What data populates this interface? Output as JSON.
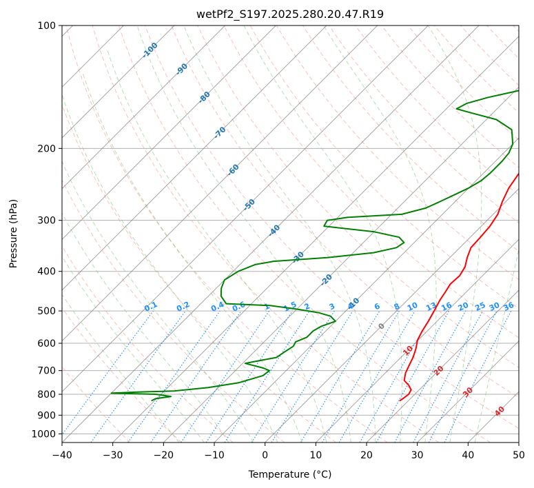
{
  "chart_data": {
    "type": "line",
    "title": "wetPf2_S197.2025.280.20.47.R19",
    "xlabel": "Temperature (°C)",
    "ylabel": "Pressure (hPa)",
    "xlim": [
      -40,
      50
    ],
    "ylim": [
      1050,
      100
    ],
    "y_scale": "log",
    "x_ticks": [
      "−40",
      "−30",
      "−20",
      "−10",
      "0",
      "10",
      "20",
      "30",
      "40",
      "50"
    ],
    "y_ticks": [
      1000,
      900,
      800,
      700,
      600,
      500,
      400,
      300,
      200,
      100
    ],
    "grid": true,
    "series": [
      {
        "id": "temperature",
        "color": "#ff0000",
        "points": [
          [
            18.3,
            830
          ],
          [
            18.5,
            820
          ],
          [
            18.8,
            800
          ],
          [
            18.4,
            780
          ],
          [
            17.0,
            760
          ],
          [
            15.2,
            740
          ],
          [
            14.0,
            710
          ],
          [
            13.2,
            680
          ],
          [
            12.4,
            650
          ],
          [
            11.3,
            620
          ],
          [
            9.9,
            590
          ],
          [
            9.0,
            560
          ],
          [
            8.3,
            530
          ],
          [
            7.4,
            500
          ],
          [
            6.4,
            470
          ],
          [
            5.9,
            450
          ],
          [
            5.3,
            430
          ],
          [
            5.5,
            410
          ],
          [
            4.8,
            390
          ],
          [
            3.4,
            370
          ],
          [
            2.2,
            350
          ],
          [
            2.0,
            330
          ],
          [
            1.7,
            310
          ],
          [
            0.9,
            290
          ],
          [
            -0.7,
            270
          ],
          [
            -2.1,
            250
          ],
          [
            -3.0,
            230
          ],
          [
            -2.4,
            210
          ],
          [
            -0.5,
            190
          ],
          [
            2.6,
            170
          ],
          [
            6.6,
            150
          ],
          [
            11.0,
            130
          ],
          [
            13.7,
            118
          ],
          [
            14.6,
            110
          ],
          [
            16.8,
            104
          ],
          [
            21.5,
            100
          ]
        ]
      },
      {
        "id": "dewpoint",
        "color": "#008000",
        "points": [
          [
            -30.6,
            830
          ],
          [
            -30.2,
            820
          ],
          [
            -27.6,
            810
          ],
          [
            -31.0,
            800
          ],
          [
            -40.0,
            795
          ],
          [
            -35.0,
            790
          ],
          [
            -28.0,
            785
          ],
          [
            -22.0,
            770
          ],
          [
            -17.0,
            750
          ],
          [
            -13.6,
            720
          ],
          [
            -13.3,
            700
          ],
          [
            -15.0,
            690
          ],
          [
            -17.5,
            680
          ],
          [
            -19.5,
            672
          ],
          [
            -18.0,
            665
          ],
          [
            -14.5,
            650
          ],
          [
            -14.0,
            630
          ],
          [
            -13.4,
            610
          ],
          [
            -13.8,
            595
          ],
          [
            -12.5,
            580
          ],
          [
            -12.5,
            560
          ],
          [
            -11.8,
            545
          ],
          [
            -10.0,
            530
          ],
          [
            -12.0,
            515
          ],
          [
            -15.0,
            505
          ],
          [
            -20.0,
            495
          ],
          [
            -26.0,
            485
          ],
          [
            -35.0,
            480
          ],
          [
            -37.5,
            460
          ],
          [
            -39.0,
            440
          ],
          [
            -40.0,
            420
          ],
          [
            -39.0,
            400
          ],
          [
            -37.0,
            385
          ],
          [
            -34.0,
            378
          ],
          [
            -24.0,
            370
          ],
          [
            -16.0,
            360
          ],
          [
            -12.5,
            350
          ],
          [
            -12.0,
            340
          ],
          [
            -14.0,
            330
          ],
          [
            -20.0,
            320
          ],
          [
            -31.0,
            310
          ],
          [
            -31.5,
            300
          ],
          [
            -28.0,
            295
          ],
          [
            -18.0,
            290
          ],
          [
            -14.5,
            280
          ],
          [
            -13.0,
            270
          ],
          [
            -11.5,
            260
          ],
          [
            -10.0,
            250
          ],
          [
            -9.0,
            240
          ],
          [
            -8.7,
            230
          ],
          [
            -8.7,
            215
          ],
          [
            -9.0,
            205
          ],
          [
            -10.0,
            195
          ],
          [
            -13.0,
            180
          ],
          [
            -18.0,
            170
          ],
          [
            -25.0,
            163
          ],
          [
            -28.0,
            160
          ],
          [
            -27.0,
            155
          ],
          [
            -24.0,
            150
          ],
          [
            -19.0,
            144
          ],
          [
            -14.0,
            139
          ],
          [
            -11.0,
            134
          ],
          [
            -8.0,
            128
          ],
          [
            -6.2,
            122
          ],
          [
            -5.9,
            116
          ],
          [
            -6.2,
            112
          ],
          [
            -7.0,
            108
          ],
          [
            -8.6,
            104
          ],
          [
            -9.5,
            100
          ]
        ]
      }
    ],
    "background": {
      "dry_adiabat_color": "#fa8072",
      "moist_adiabat_color": "#2ca02c",
      "isotherm_color": "#808080",
      "mixing_ratio_color": "#1e90ff"
    },
    "isotherm_labels": [
      "-100",
      "-90",
      "-80",
      "-70",
      "-60",
      "-50",
      "-40",
      "-30",
      "-20",
      "-10",
      "0",
      "10",
      "20",
      "30",
      "40"
    ],
    "mixing_ratio_labels": [
      "0.1",
      "0.2",
      "0.4",
      "0.6",
      "1",
      "1.5",
      "2",
      "3",
      "4",
      "6",
      "8",
      "10",
      "13",
      "16",
      "20",
      "25",
      "30",
      "36"
    ],
    "mixing_ratio_values": [
      0.1,
      0.2,
      0.4,
      0.6,
      1,
      1.5,
      2,
      3,
      4,
      6,
      8,
      10,
      13,
      16,
      20,
      25,
      30,
      36
    ]
  }
}
